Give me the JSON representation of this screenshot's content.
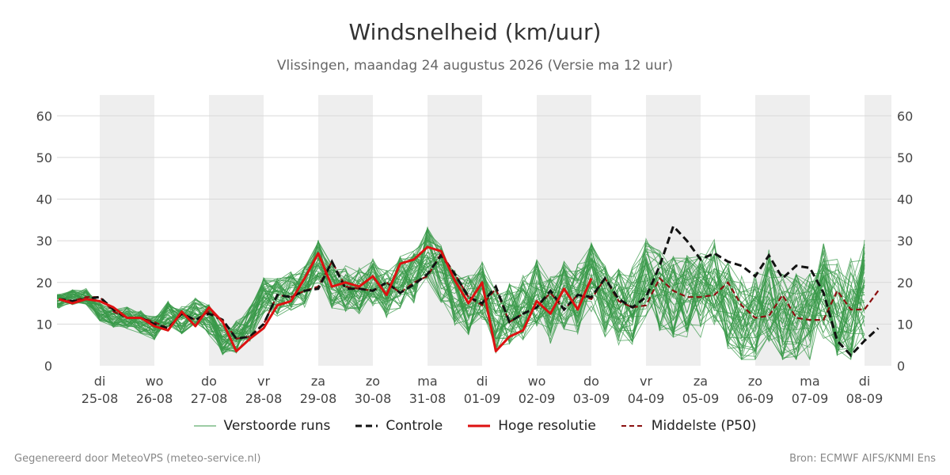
{
  "title": "Windsnelheid (km/uur)",
  "subtitle": "Vlissingen, maandag 24 augustus 2026 (Versie ma 12 uur)",
  "footer": {
    "left": "Gegenereerd door MeteoVPS (meteo-service.nl)",
    "right": "Bron: ECMWF AIFS/KNMI Ens"
  },
  "legend": {
    "members": "Verstoorde runs",
    "control": "Controle",
    "hires": "Hoge resolutie",
    "median": "Middelste (P50)"
  },
  "colors": {
    "members": "#3a9a4a",
    "control": "#111111",
    "hires": "#dd1111",
    "median": "#8b1010",
    "band": "#eeeeee",
    "grid": "#d9d9d9"
  },
  "chart_data": {
    "type": "line",
    "x_start": 0,
    "x_end": 14.6,
    "step": 0.25,
    "ylim": [
      0,
      65
    ],
    "yticks": [
      0,
      10,
      20,
      30,
      40,
      50,
      60
    ],
    "grid": true,
    "legend_position": "bottom",
    "day_ticks": [
      {
        "dow": "di",
        "date": "25-08"
      },
      {
        "dow": "wo",
        "date": "26-08"
      },
      {
        "dow": "do",
        "date": "27-08"
      },
      {
        "dow": "vr",
        "date": "28-08"
      },
      {
        "dow": "za",
        "date": "29-08"
      },
      {
        "dow": "zo",
        "date": "30-08"
      },
      {
        "dow": "ma",
        "date": "31-08"
      },
      {
        "dow": "di",
        "date": "01-09"
      },
      {
        "dow": "wo",
        "date": "02-09"
      },
      {
        "dow": "do",
        "date": "03-09"
      },
      {
        "dow": "vr",
        "date": "04-09"
      },
      {
        "dow": "za",
        "date": "05-09"
      },
      {
        "dow": "zo",
        "date": "06-09"
      },
      {
        "dow": "ma",
        "date": "07-09"
      },
      {
        "dow": "di",
        "date": "08-09"
      }
    ],
    "ensemble_count": 50,
    "control": {
      "name": "Controle",
      "values": [
        16,
        15.5,
        16,
        16.5,
        13.5,
        11.5,
        11.5,
        10,
        9,
        12.5,
        11,
        12.5,
        11,
        6.5,
        7,
        10,
        17,
        16.5,
        18,
        18.5,
        25,
        18.5,
        18.5,
        18,
        20,
        17.5,
        19.5,
        22,
        26.5,
        22,
        16.5,
        15,
        19,
        10.5,
        12.5,
        14,
        18,
        13.5,
        17,
        16.5,
        21,
        16,
        14,
        16.5,
        24,
        33.5,
        30,
        25.5,
        27,
        25,
        24,
        21.5,
        26.5,
        21,
        24,
        23.5,
        17.5,
        6,
        2.5,
        6,
        9
      ]
    },
    "hires": {
      "name": "Hoge resolutie",
      "values": [
        16,
        15,
        16,
        15.5,
        14,
        11.5,
        11.5,
        9.5,
        8.5,
        13,
        9.5,
        14,
        10.5,
        3.5,
        6.5,
        9,
        14.5,
        15.5,
        21,
        27,
        19,
        20,
        19,
        21.5,
        17,
        24.5,
        25.5,
        28.5,
        27.5,
        20.5,
        15,
        20,
        3.5,
        7,
        8.5,
        15.5,
        12.5,
        18.5,
        13.5,
        21
      ]
    },
    "median": {
      "name": "Middelste (P50)",
      "values": [
        16,
        15.5,
        16.5,
        16.5,
        13,
        11.5,
        11.5,
        10.5,
        9,
        12.5,
        11,
        13,
        11,
        6.5,
        7,
        10,
        17,
        16.5,
        18,
        19,
        25,
        19,
        18.5,
        18,
        20,
        17.5,
        20,
        21.5,
        27,
        22,
        16.5,
        14.5,
        18.5,
        10.5,
        12.5,
        14,
        17.5,
        13.5,
        17,
        16,
        21,
        15.5,
        14,
        14.5,
        21,
        18,
        16.5,
        16.5,
        17,
        20,
        14.5,
        11.5,
        12,
        17,
        11.5,
        11,
        11,
        18,
        13.5,
        13.5,
        18
      ]
    }
  }
}
